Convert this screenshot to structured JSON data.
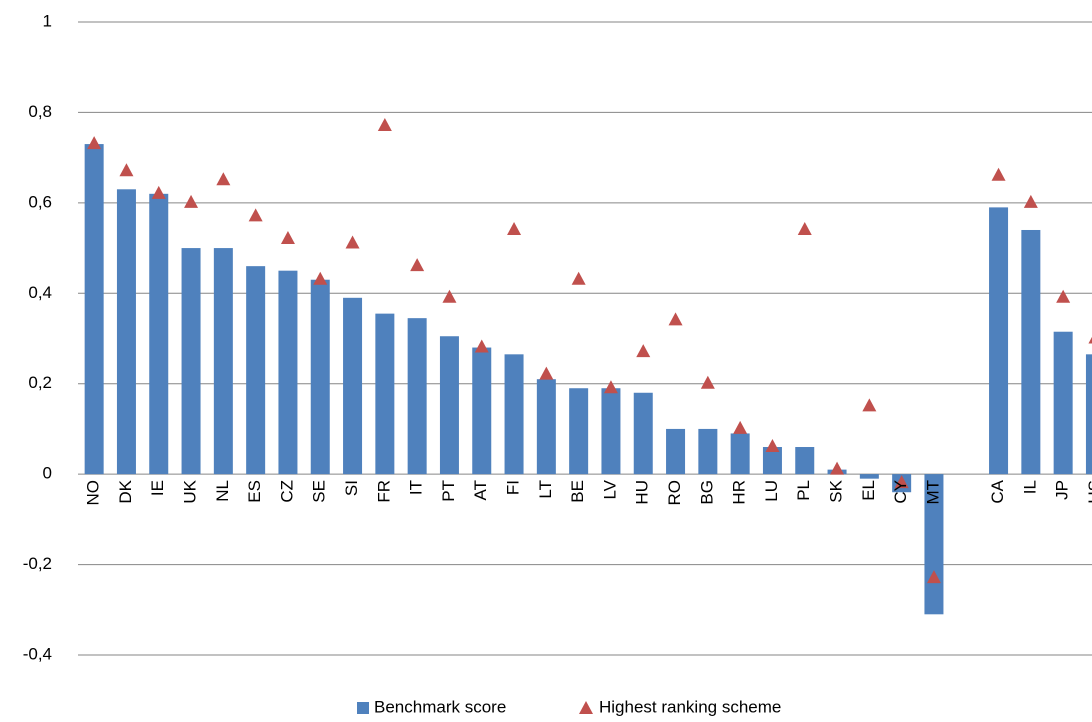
{
  "chart_data": {
    "type": "bar",
    "categories": [
      "NO",
      "DK",
      "IE",
      "UK",
      "NL",
      "ES",
      "CZ",
      "SE",
      "SI",
      "FR",
      "IT",
      "PT",
      "AT",
      "FI",
      "LT",
      "BE",
      "LV",
      "HU",
      "RO",
      "BG",
      "HR",
      "LU",
      "PL",
      "SK",
      "EL",
      "CY",
      "MT",
      null,
      "CA",
      "IL",
      "JP",
      "US"
    ],
    "series": [
      {
        "name": "Benchmark score",
        "type": "bar",
        "color": "#4f81bd",
        "values": [
          0.73,
          0.63,
          0.62,
          0.5,
          0.5,
          0.46,
          0.45,
          0.43,
          0.39,
          0.355,
          0.345,
          0.305,
          0.28,
          0.265,
          0.21,
          0.19,
          0.19,
          0.18,
          0.1,
          0.1,
          0.09,
          0.06,
          0.06,
          0.01,
          -0.01,
          -0.04,
          -0.31,
          null,
          0.59,
          0.54,
          0.315,
          0.265
        ]
      },
      {
        "name": "Highest ranking scheme",
        "type": "scatter",
        "color": "#c0504d",
        "values": [
          0.73,
          0.67,
          0.62,
          0.6,
          0.65,
          0.57,
          0.52,
          0.43,
          0.51,
          0.77,
          0.46,
          0.39,
          0.28,
          0.54,
          0.22,
          0.43,
          0.19,
          0.27,
          0.34,
          0.2,
          0.1,
          0.06,
          0.54,
          0.01,
          0.15,
          -0.02,
          -0.23,
          null,
          0.66,
          0.6,
          0.39,
          0.3
        ]
      }
    ],
    "ylim": [
      -0.4,
      1
    ],
    "yticks": [
      {
        "value": -0.4,
        "label": "-0,4"
      },
      {
        "value": -0.2,
        "label": "-0,2"
      },
      0,
      {
        "value": 0.2,
        "label": "0,2"
      },
      {
        "value": 0.4,
        "label": "0,4"
      },
      {
        "value": 0.6,
        "label": "0,6"
      },
      {
        "value": 0.8,
        "label": "0,8"
      },
      1
    ],
    "grid": true
  }
}
